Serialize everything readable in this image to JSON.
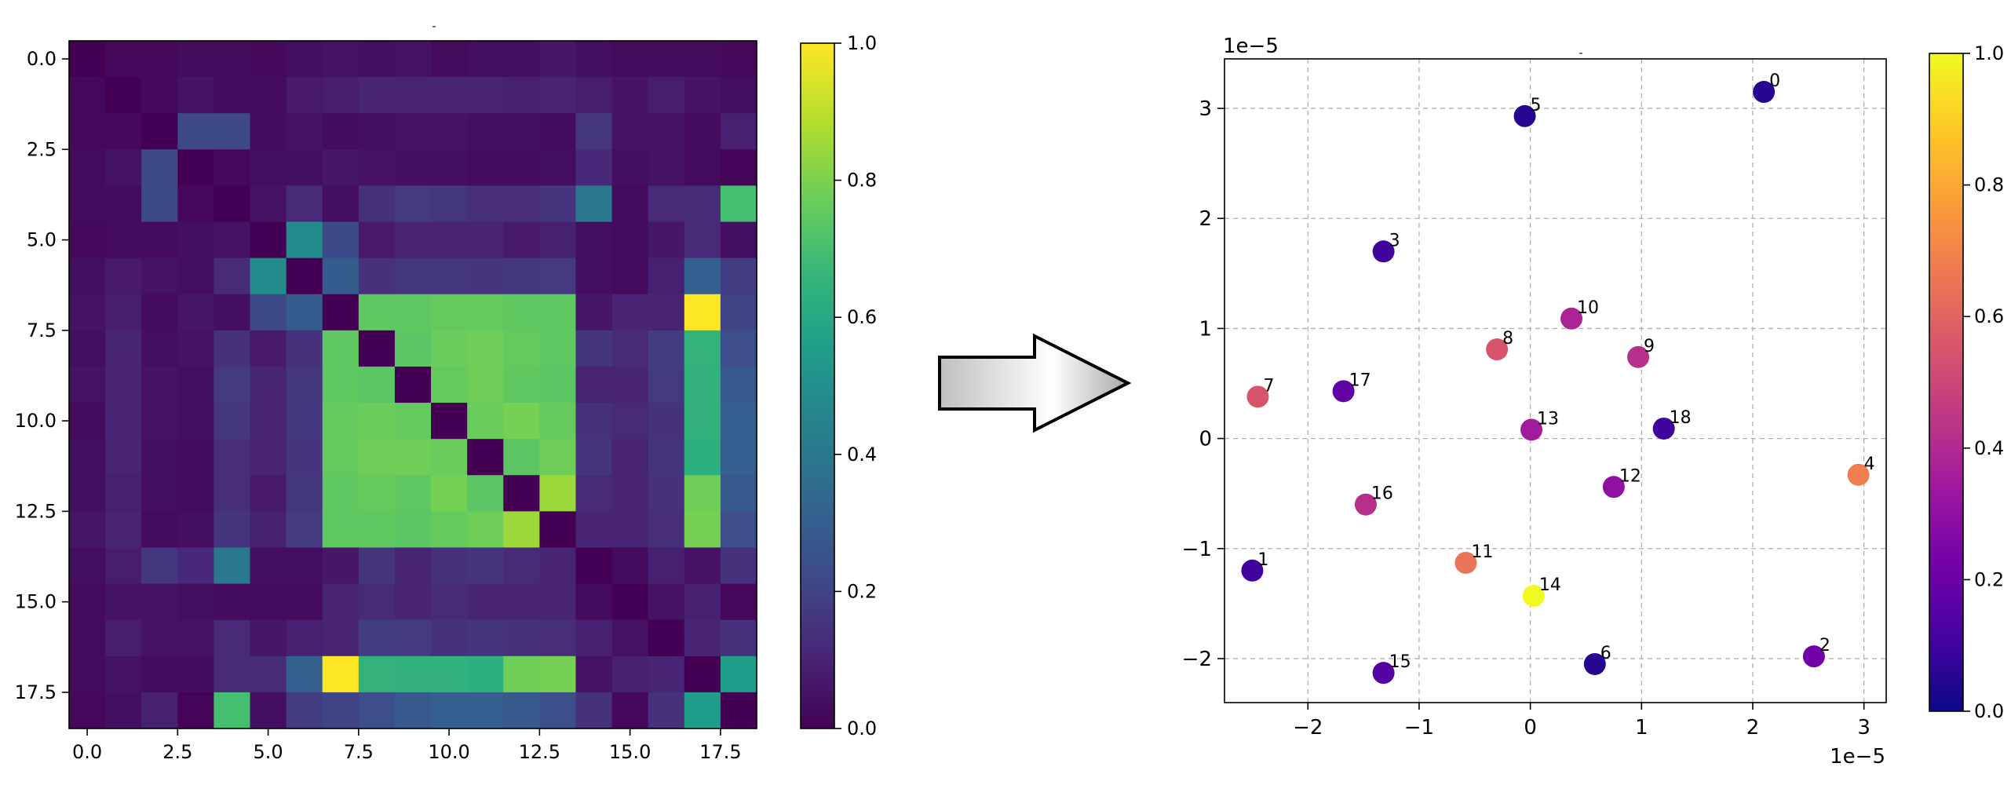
{
  "chart_data": [
    {
      "type": "heatmap",
      "title": "-",
      "n": 19,
      "xticks": [
        "0.0",
        "2.5",
        "5.0",
        "7.5",
        "10.0",
        "12.5",
        "15.0",
        "17.5"
      ],
      "yticks": [
        "0.0",
        "2.5",
        "5.0",
        "7.5",
        "10.0",
        "12.5",
        "15.0",
        "17.5"
      ],
      "tick_values": [
        0,
        2.5,
        5,
        7.5,
        10,
        12.5,
        15,
        17.5
      ],
      "colormap": "viridis",
      "colorbar": {
        "range": [
          0,
          1
        ],
        "ticks": [
          "0.0",
          "0.2",
          "0.4",
          "0.6",
          "0.8",
          "1.0"
        ]
      },
      "values": [
        [
          0.0,
          0.02,
          0.02,
          0.03,
          0.03,
          0.02,
          0.04,
          0.05,
          0.04,
          0.05,
          0.03,
          0.04,
          0.04,
          0.06,
          0.04,
          0.03,
          0.03,
          0.03,
          0.02
        ],
        [
          0.02,
          0.0,
          0.02,
          0.05,
          0.03,
          0.03,
          0.07,
          0.08,
          0.1,
          0.1,
          0.1,
          0.1,
          0.09,
          0.1,
          0.08,
          0.05,
          0.08,
          0.05,
          0.04
        ],
        [
          0.02,
          0.02,
          0.0,
          0.22,
          0.22,
          0.03,
          0.05,
          0.03,
          0.04,
          0.05,
          0.05,
          0.04,
          0.04,
          0.03,
          0.16,
          0.05,
          0.05,
          0.03,
          0.09
        ],
        [
          0.03,
          0.05,
          0.22,
          0.0,
          0.02,
          0.04,
          0.04,
          0.06,
          0.05,
          0.04,
          0.04,
          0.03,
          0.03,
          0.04,
          0.11,
          0.04,
          0.05,
          0.03,
          0.01
        ],
        [
          0.03,
          0.03,
          0.22,
          0.02,
          0.0,
          0.05,
          0.12,
          0.04,
          0.14,
          0.17,
          0.16,
          0.13,
          0.13,
          0.15,
          0.4,
          0.03,
          0.12,
          0.12,
          0.7
        ],
        [
          0.02,
          0.03,
          0.03,
          0.04,
          0.05,
          0.0,
          0.48,
          0.22,
          0.07,
          0.1,
          0.1,
          0.1,
          0.07,
          0.09,
          0.04,
          0.03,
          0.06,
          0.12,
          0.04
        ],
        [
          0.04,
          0.07,
          0.05,
          0.04,
          0.12,
          0.48,
          0.0,
          0.29,
          0.14,
          0.16,
          0.16,
          0.15,
          0.16,
          0.17,
          0.04,
          0.03,
          0.09,
          0.3,
          0.18
        ],
        [
          0.05,
          0.08,
          0.03,
          0.06,
          0.04,
          0.22,
          0.29,
          0.0,
          0.75,
          0.75,
          0.76,
          0.76,
          0.75,
          0.75,
          0.06,
          0.1,
          0.1,
          1.0,
          0.2
        ],
        [
          0.04,
          0.1,
          0.04,
          0.05,
          0.14,
          0.07,
          0.14,
          0.75,
          0.0,
          0.74,
          0.77,
          0.78,
          0.76,
          0.75,
          0.15,
          0.12,
          0.18,
          0.65,
          0.24
        ],
        [
          0.05,
          0.1,
          0.05,
          0.04,
          0.17,
          0.1,
          0.16,
          0.75,
          0.74,
          0.0,
          0.76,
          0.78,
          0.75,
          0.74,
          0.1,
          0.1,
          0.17,
          0.64,
          0.28
        ],
        [
          0.03,
          0.1,
          0.05,
          0.04,
          0.16,
          0.1,
          0.16,
          0.76,
          0.77,
          0.76,
          0.0,
          0.77,
          0.79,
          0.76,
          0.14,
          0.12,
          0.14,
          0.64,
          0.3
        ],
        [
          0.04,
          0.1,
          0.04,
          0.03,
          0.13,
          0.1,
          0.15,
          0.76,
          0.78,
          0.78,
          0.77,
          0.0,
          0.74,
          0.78,
          0.15,
          0.1,
          0.15,
          0.63,
          0.3
        ],
        [
          0.04,
          0.09,
          0.04,
          0.03,
          0.13,
          0.07,
          0.16,
          0.75,
          0.76,
          0.75,
          0.79,
          0.74,
          0.0,
          0.85,
          0.12,
          0.1,
          0.14,
          0.78,
          0.28
        ],
        [
          0.06,
          0.1,
          0.03,
          0.04,
          0.15,
          0.09,
          0.17,
          0.75,
          0.75,
          0.74,
          0.76,
          0.78,
          0.85,
          0.0,
          0.1,
          0.1,
          0.13,
          0.79,
          0.24
        ],
        [
          0.04,
          0.08,
          0.16,
          0.11,
          0.4,
          0.04,
          0.04,
          0.06,
          0.15,
          0.1,
          0.14,
          0.15,
          0.12,
          0.1,
          0.0,
          0.03,
          0.09,
          0.05,
          0.14
        ],
        [
          0.03,
          0.05,
          0.05,
          0.04,
          0.03,
          0.03,
          0.03,
          0.1,
          0.12,
          0.1,
          0.12,
          0.1,
          0.1,
          0.1,
          0.03,
          0.0,
          0.05,
          0.09,
          0.02
        ],
        [
          0.03,
          0.08,
          0.05,
          0.05,
          0.12,
          0.06,
          0.09,
          0.1,
          0.18,
          0.17,
          0.14,
          0.15,
          0.14,
          0.13,
          0.09,
          0.05,
          0.0,
          0.1,
          0.14
        ],
        [
          0.03,
          0.05,
          0.03,
          0.03,
          0.12,
          0.12,
          0.3,
          1.0,
          0.65,
          0.64,
          0.64,
          0.63,
          0.78,
          0.79,
          0.05,
          0.09,
          0.1,
          0.0,
          0.55
        ],
        [
          0.02,
          0.04,
          0.09,
          0.01,
          0.7,
          0.04,
          0.18,
          0.2,
          0.24,
          0.28,
          0.3,
          0.3,
          0.28,
          0.24,
          0.14,
          0.02,
          0.14,
          0.55,
          0.0
        ]
      ]
    },
    {
      "type": "scatter",
      "title": "-",
      "colormap": "plasma",
      "x_offset_label": "1e−5",
      "y_offset_label": "1e−5",
      "xlim": [
        -2.75,
        3.2
      ],
      "ylim": [
        -2.4,
        3.45
      ],
      "xticks": [
        -2,
        -1,
        0,
        1,
        2,
        3
      ],
      "xtick_labels": [
        "−2",
        "−1",
        "0",
        "1",
        "2",
        "3"
      ],
      "yticks": [
        -2,
        -1,
        0,
        1,
        2,
        3
      ],
      "ytick_labels": [
        "−2",
        "−1",
        "0",
        "1",
        "2",
        "3"
      ],
      "grid": true,
      "colorbar": {
        "range": [
          0,
          1
        ],
        "ticks": [
          "0.0",
          "0.2",
          "0.4",
          "0.6",
          "0.8",
          "1.0"
        ]
      },
      "points": [
        {
          "label": "0",
          "x": 2.1,
          "y": 3.15,
          "c": 0.05
        },
        {
          "label": "1",
          "x": -2.5,
          "y": -1.2,
          "c": 0.1
        },
        {
          "label": "2",
          "x": 2.55,
          "y": -1.98,
          "c": 0.22
        },
        {
          "label": "3",
          "x": -1.32,
          "y": 1.7,
          "c": 0.1
        },
        {
          "label": "4",
          "x": 2.95,
          "y": -0.33,
          "c": 0.68
        },
        {
          "label": "5",
          "x": -0.05,
          "y": 2.93,
          "c": 0.05
        },
        {
          "label": "6",
          "x": 0.58,
          "y": -2.05,
          "c": 0.05
        },
        {
          "label": "7",
          "x": -2.45,
          "y": 0.38,
          "c": 0.55
        },
        {
          "label": "8",
          "x": -0.3,
          "y": 0.81,
          "c": 0.55
        },
        {
          "label": "9",
          "x": 0.97,
          "y": 0.74,
          "c": 0.42
        },
        {
          "label": "10",
          "x": 0.37,
          "y": 1.09,
          "c": 0.38
        },
        {
          "label": "11",
          "x": -0.58,
          "y": -1.13,
          "c": 0.65
        },
        {
          "label": "12",
          "x": 0.75,
          "y": -0.44,
          "c": 0.3
        },
        {
          "label": "13",
          "x": 0.01,
          "y": 0.08,
          "c": 0.35
        },
        {
          "label": "14",
          "x": 0.03,
          "y": -1.43,
          "c": 1.0
        },
        {
          "label": "15",
          "x": -1.32,
          "y": -2.13,
          "c": 0.15
        },
        {
          "label": "16",
          "x": -1.48,
          "y": -0.6,
          "c": 0.42
        },
        {
          "label": "17",
          "x": -1.68,
          "y": 0.43,
          "c": 0.18
        },
        {
          "label": "18",
          "x": 1.2,
          "y": 0.09,
          "c": 0.1
        }
      ]
    }
  ]
}
